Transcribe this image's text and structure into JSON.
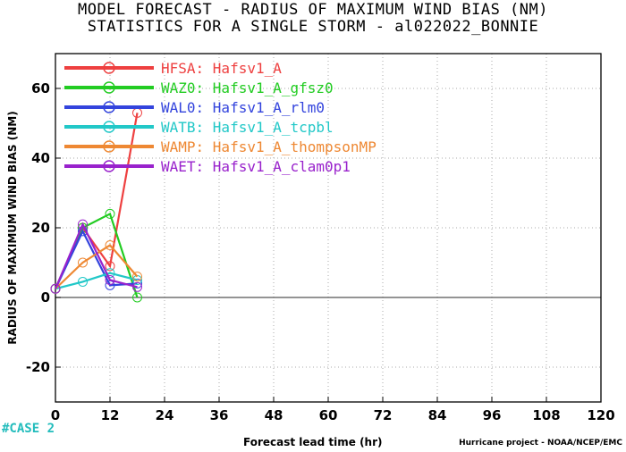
{
  "header": {
    "title_line1": "MODEL FORECAST - RADIUS OF MAXIMUM WIND BIAS (NM)",
    "title_line2": "STATISTICS FOR A SINGLE STORM - al022022_BONNIE"
  },
  "footer": {
    "case_label": "#CASE 2",
    "credit": "Hurricane project - NOAA/NCEP/EMC"
  },
  "chart_data": {
    "type": "line",
    "title": "MODEL FORECAST - RADIUS OF MAXIMUM WIND BIAS (NM)",
    "subtitle": "STATISTICS FOR A SINGLE STORM - al022022_BONNIE",
    "xlabel": "Forecast lead time (hr)",
    "ylabel": "RADIUS OF MAXIMUM WIND BIAS (NM)",
    "xlim": [
      0,
      120
    ],
    "ylim": [
      -30,
      70
    ],
    "xticks": [
      0,
      12,
      24,
      36,
      48,
      60,
      72,
      84,
      96,
      108,
      120
    ],
    "yticks": [
      -20,
      0,
      20,
      40,
      60
    ],
    "grid": true,
    "legend_position": "top-left",
    "zero_line": 0,
    "series": [
      {
        "name": "HFSA: Hafsv1_A",
        "color": "#ee4040",
        "x": [
          0,
          6,
          12,
          18
        ],
        "y": [
          2.5,
          20,
          9,
          53
        ]
      },
      {
        "name": "WAZ0: Hafsv1_A_gfsz0",
        "color": "#22cc22",
        "x": [
          0,
          6,
          12,
          18
        ],
        "y": [
          2.5,
          20,
          24,
          0
        ]
      },
      {
        "name": "WAL0: Hafsv1_A_rlm0",
        "color": "#3344dd",
        "x": [
          0,
          6,
          12,
          18
        ],
        "y": [
          2.5,
          19,
          3.5,
          4
        ]
      },
      {
        "name": "WATB: Hafsv1_A_tcpbl",
        "color": "#22c8c8",
        "x": [
          0,
          6,
          12,
          18
        ],
        "y": [
          2.5,
          4.5,
          7,
          5
        ]
      },
      {
        "name": "WAMP: Hafsv1_A_thompsonMP",
        "color": "#ee8833",
        "x": [
          0,
          6,
          12,
          18
        ],
        "y": [
          2.5,
          10,
          15,
          6
        ]
      },
      {
        "name": "WAET: Hafsv1_A_clam0p1",
        "color": "#9922cc",
        "x": [
          0,
          6,
          12,
          18
        ],
        "y": [
          2.5,
          21,
          5,
          3
        ]
      }
    ]
  }
}
